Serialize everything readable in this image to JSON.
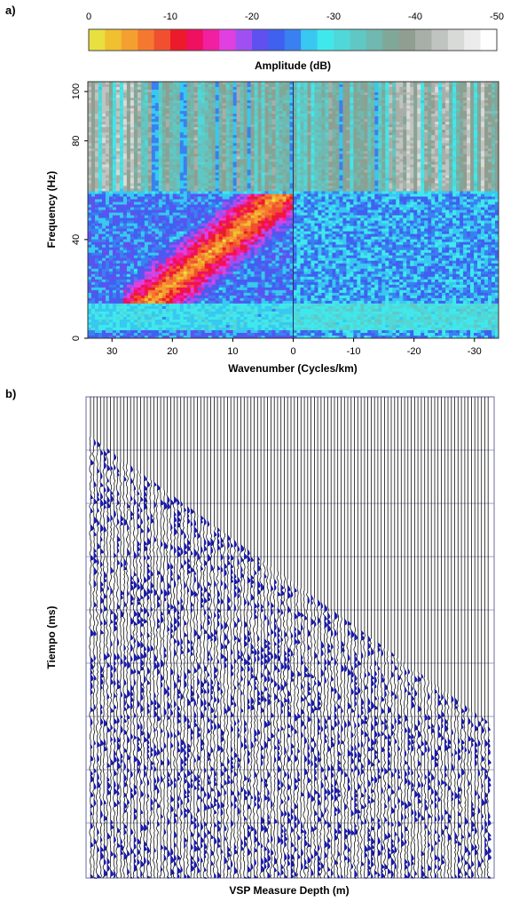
{
  "panels": {
    "a": "a)",
    "b": "b)"
  },
  "colorbar": {
    "label": "Amplitude (dB)",
    "ticks": [
      "0",
      "-10",
      "-20",
      "-30",
      "-40",
      "-50"
    ],
    "range": [
      0,
      -50
    ],
    "colors": [
      "#e8e040",
      "#f0c030",
      "#f4a030",
      "#f57830",
      "#f05030",
      "#ec1a2a",
      "#f01060",
      "#f020a0",
      "#e040e0",
      "#a050f0",
      "#6050f0",
      "#4060f0",
      "#3a80f0",
      "#38c8f0",
      "#40e8ec",
      "#50d8d8",
      "#60c8c4",
      "#70b8b0",
      "#80a898",
      "#909e90",
      "#a8aea8",
      "#c0c4c0",
      "#d8dad8",
      "#ececec",
      "#ffffff"
    ]
  },
  "chart_data": [
    {
      "type": "heatmap",
      "title": "",
      "xlabel": "Wavenumber (Cycles/km)",
      "ylabel": "Frequency (Hz)",
      "xlim": [
        34,
        -34
      ],
      "ylim": [
        0,
        104
      ],
      "xticks": [
        "30",
        "20",
        "10",
        "0",
        "-10",
        "-20",
        "-30"
      ],
      "yticks": [
        "0",
        "40",
        "80",
        "100"
      ],
      "energy_band": {
        "f_min": 15,
        "f_max": 58,
        "k_min": 0,
        "k_max": 27,
        "peak_amplitude_db": 0
      },
      "background_amplitude_db": -28
    },
    {
      "type": "line",
      "title": "",
      "xlabel": "VSP Measure Depth (m)",
      "ylabel": "Tiempo (ms)",
      "traces": 120
    }
  ]
}
